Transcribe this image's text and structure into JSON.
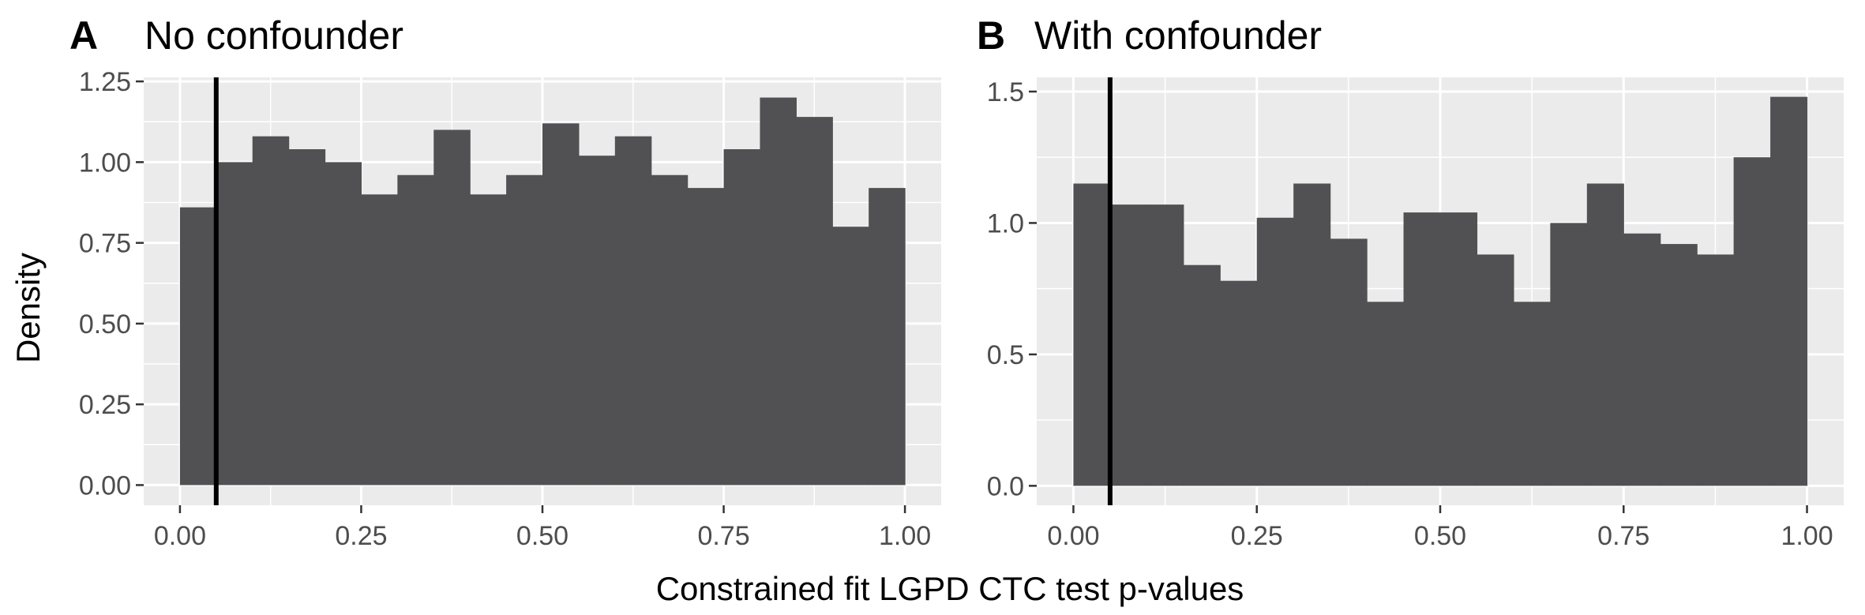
{
  "figure": {
    "ylabel": "Density",
    "xlabel": "Constrained fit LGPD CTC test p-values"
  },
  "chart_data": [
    {
      "type": "bar",
      "panel_label": "A",
      "title": "No confounder",
      "xlim": [
        -0.05,
        1.05
      ],
      "ylim": [
        -0.0625,
        1.2625
      ],
      "x_ticks": [
        0.0,
        0.25,
        0.5,
        0.75,
        1.0
      ],
      "x_tick_labels": [
        "0.00",
        "0.25",
        "0.50",
        "0.75",
        "1.00"
      ],
      "y_ticks": [
        0.0,
        0.25,
        0.5,
        0.75,
        1.0,
        1.25
      ],
      "y_tick_labels": [
        "0.00",
        "0.25",
        "0.50",
        "0.75",
        "1.00",
        "1.25"
      ],
      "bin_edges": [
        0.0,
        0.05,
        0.1,
        0.15,
        0.2,
        0.25,
        0.3,
        0.35,
        0.4,
        0.45,
        0.5,
        0.55,
        0.6,
        0.65,
        0.7,
        0.75,
        0.8,
        0.85,
        0.9,
        0.95,
        1.0
      ],
      "values": [
        0.86,
        1.0,
        1.08,
        1.04,
        1.0,
        0.9,
        0.96,
        1.1,
        0.9,
        0.96,
        1.12,
        1.02,
        1.08,
        0.96,
        0.92,
        1.04,
        1.2,
        1.14,
        0.8,
        0.92
      ],
      "vline": 0.05,
      "grid": true,
      "bar_color": "#515052",
      "panel_bg": "#ebebeb",
      "grid_color": "#ffffff"
    },
    {
      "type": "bar",
      "panel_label": "B",
      "title": "With confounder",
      "xlim": [
        -0.05,
        1.05
      ],
      "ylim": [
        -0.074,
        1.554
      ],
      "x_ticks": [
        0.0,
        0.25,
        0.5,
        0.75,
        1.0
      ],
      "x_tick_labels": [
        "0.00",
        "0.25",
        "0.50",
        "0.75",
        "1.00"
      ],
      "y_ticks": [
        0.0,
        0.5,
        1.0,
        1.5
      ],
      "y_tick_labels": [
        "0.0",
        "0.5",
        "1.0",
        "1.5"
      ],
      "bin_edges": [
        0.0,
        0.05,
        0.1,
        0.15,
        0.2,
        0.25,
        0.3,
        0.35,
        0.4,
        0.45,
        0.5,
        0.55,
        0.6,
        0.65,
        0.7,
        0.75,
        0.8,
        0.85,
        0.9,
        0.95,
        1.0
      ],
      "values": [
        1.15,
        1.07,
        1.07,
        0.84,
        0.78,
        1.02,
        1.15,
        0.94,
        0.7,
        1.04,
        1.04,
        0.88,
        0.7,
        1.0,
        1.15,
        0.96,
        0.92,
        0.88,
        1.25,
        1.48
      ],
      "vline": 0.05,
      "grid": true,
      "bar_color": "#515052",
      "panel_bg": "#ebebeb",
      "grid_color": "#ffffff"
    }
  ]
}
